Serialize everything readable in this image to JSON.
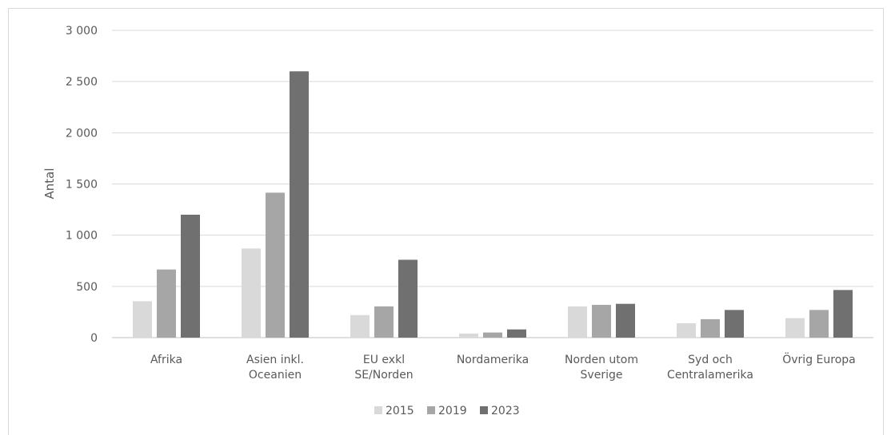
{
  "chart_data": {
    "type": "bar",
    "title": "",
    "xlabel": "",
    "ylabel": "Antal",
    "ylim": [
      0,
      3000
    ],
    "yticks": [
      "0",
      "500",
      "1 000",
      "1 500",
      "2 000",
      "2 500",
      "3 000"
    ],
    "ytick_values": [
      0,
      500,
      1000,
      1500,
      2000,
      2500,
      3000
    ],
    "grid": true,
    "legend_position": "bottom",
    "categories": [
      [
        "Afrika"
      ],
      [
        "Asien inkl.",
        "Oceanien"
      ],
      [
        "EU exkl",
        "SE/Norden"
      ],
      [
        "Nordamerika"
      ],
      [
        "Norden utom",
        "Sverige"
      ],
      [
        "Syd och",
        "Centralamerika"
      ],
      [
        "Övrig Europa"
      ]
    ],
    "series": [
      {
        "name": "2015",
        "color": "#d9d9d9",
        "values": [
          355,
          870,
          220,
          40,
          305,
          140,
          190
        ]
      },
      {
        "name": "2019",
        "color": "#a6a6a6",
        "values": [
          665,
          1415,
          305,
          50,
          320,
          180,
          270
        ]
      },
      {
        "name": "2023",
        "color": "#707070",
        "values": [
          1200,
          2600,
          760,
          80,
          330,
          270,
          465
        ]
      }
    ]
  }
}
